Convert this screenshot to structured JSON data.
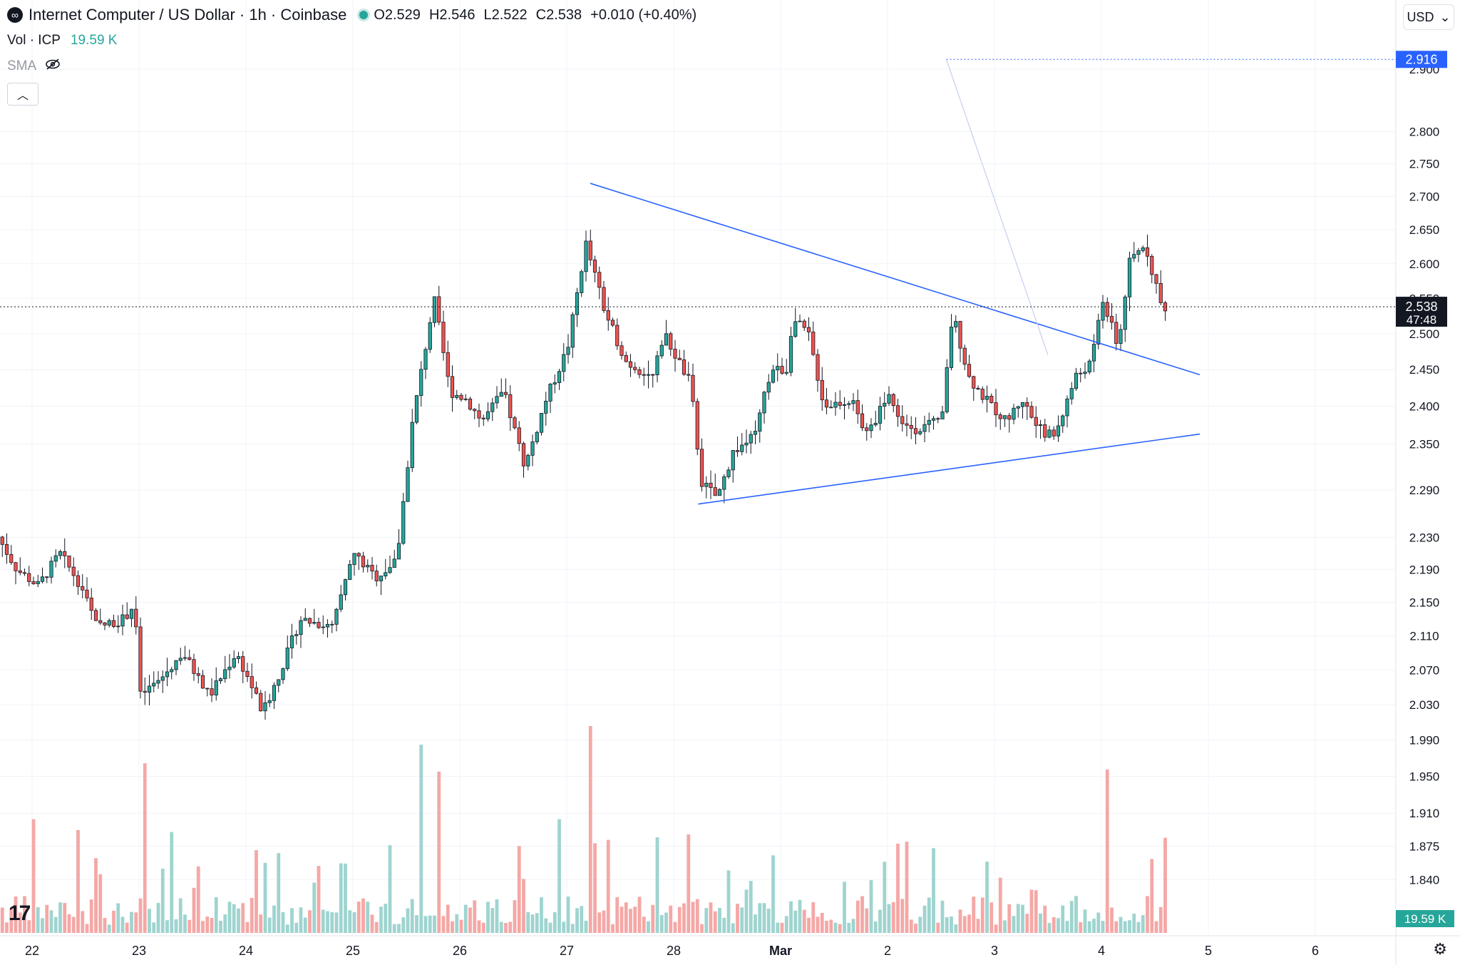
{
  "header": {
    "symbol_icon": "infinity-icon",
    "title": "Internet Computer / US Dollar · 1h · Coinbase",
    "ohlc": [
      {
        "k": "O",
        "v": "2.529"
      },
      {
        "k": "H",
        "v": "2.546"
      },
      {
        "k": "L",
        "v": "2.522"
      },
      {
        "k": "C",
        "v": "2.538"
      }
    ],
    "change": "+0.010 (+0.40%)"
  },
  "volume_legend": {
    "label": "Vol · ICP",
    "value": "19.59 K"
  },
  "sma_legend": {
    "label": "SMA",
    "icon": "eye-off-icon"
  },
  "currency": {
    "label": "USD",
    "icon": "chevron-down-icon"
  },
  "colors": {
    "up": "#26a69a",
    "down": "#ef5350",
    "up_vol": "#9fd4cf",
    "down_vol": "#f4a8a6",
    "drawing": "#2962ff",
    "grid": "#f0f3fa",
    "price_label_bg": "#131722"
  },
  "chart_data": {
    "type": "candlestick",
    "interval": "1h",
    "x_tick_labels": [
      "22",
      "23",
      "24",
      "25",
      "26",
      "27",
      "28",
      "Mar",
      "2",
      "3",
      "4",
      "5",
      "6"
    ],
    "y_tick_labels": [
      "1.840",
      "1.875",
      "1.910",
      "1.950",
      "1.990",
      "2.030",
      "2.070",
      "2.110",
      "2.150",
      "2.190",
      "2.230",
      "2.290",
      "2.350",
      "2.400",
      "2.450",
      "2.500",
      "2.550",
      "2.600",
      "2.650",
      "2.700",
      "2.750",
      "2.800",
      "2.900"
    ],
    "y_scale": "log",
    "ylim": [
      1.83,
      2.93
    ],
    "price_anchors": [
      {
        "day": 21.68,
        "price": 2.24
      },
      {
        "day": 21.9,
        "price": 2.19
      },
      {
        "day": 22.1,
        "price": 2.17
      },
      {
        "day": 22.3,
        "price": 2.21
      },
      {
        "day": 22.5,
        "price": 2.17
      },
      {
        "day": 22.65,
        "price": 2.12
      },
      {
        "day": 22.9,
        "price": 2.13
      },
      {
        "day": 23.0,
        "price": 2.15
      },
      {
        "day": 23.05,
        "price": 2.04
      },
      {
        "day": 23.25,
        "price": 2.06
      },
      {
        "day": 23.45,
        "price": 2.09
      },
      {
        "day": 23.7,
        "price": 2.04
      },
      {
        "day": 23.95,
        "price": 2.09
      },
      {
        "day": 24.1,
        "price": 2.05
      },
      {
        "day": 24.2,
        "price": 2.02
      },
      {
        "day": 24.4,
        "price": 2.08
      },
      {
        "day": 24.55,
        "price": 2.13
      },
      {
        "day": 24.85,
        "price": 2.12
      },
      {
        "day": 25.05,
        "price": 2.21
      },
      {
        "day": 25.25,
        "price": 2.18
      },
      {
        "day": 25.45,
        "price": 2.2
      },
      {
        "day": 25.6,
        "price": 2.38
      },
      {
        "day": 25.8,
        "price": 2.55
      },
      {
        "day": 25.95,
        "price": 2.42
      },
      {
        "day": 26.1,
        "price": 2.41
      },
      {
        "day": 26.25,
        "price": 2.38
      },
      {
        "day": 26.45,
        "price": 2.42
      },
      {
        "day": 26.65,
        "price": 2.32
      },
      {
        "day": 26.85,
        "price": 2.41
      },
      {
        "day": 27.05,
        "price": 2.48
      },
      {
        "day": 27.22,
        "price": 2.63
      },
      {
        "day": 27.4,
        "price": 2.53
      },
      {
        "day": 27.6,
        "price": 2.46
      },
      {
        "day": 27.85,
        "price": 2.44
      },
      {
        "day": 27.95,
        "price": 2.5
      },
      {
        "day": 28.2,
        "price": 2.43
      },
      {
        "day": 28.3,
        "price": 2.3
      },
      {
        "day": 28.45,
        "price": 2.28
      },
      {
        "day": 28.6,
        "price": 2.34
      },
      {
        "day": 28.8,
        "price": 2.36
      },
      {
        "day": 28.95,
        "price": 2.45
      },
      {
        "day": 29.1,
        "price": 2.45
      },
      {
        "day": 29.15,
        "price": 2.52
      },
      {
        "day": 29.3,
        "price": 2.5
      },
      {
        "day": 29.45,
        "price": 2.4
      },
      {
        "day": 29.7,
        "price": 2.41
      },
      {
        "day": 29.85,
        "price": 2.36
      },
      {
        "day": 30.05,
        "price": 2.42
      },
      {
        "day": 30.15,
        "price": 2.38
      },
      {
        "day": 30.3,
        "price": 2.37
      },
      {
        "day": 30.55,
        "price": 2.38
      },
      {
        "day": 30.65,
        "price": 2.53
      },
      {
        "day": 30.8,
        "price": 2.44
      },
      {
        "day": 30.95,
        "price": 2.41
      },
      {
        "day": 31.15,
        "price": 2.38
      },
      {
        "day": 31.3,
        "price": 2.41
      },
      {
        "day": 31.45,
        "price": 2.37
      },
      {
        "day": 31.6,
        "price": 2.36
      },
      {
        "day": 31.8,
        "price": 2.44
      },
      {
        "day": 31.95,
        "price": 2.46
      },
      {
        "day": 32.05,
        "price": 2.55
      },
      {
        "day": 32.2,
        "price": 2.48
      },
      {
        "day": 32.3,
        "price": 2.6
      },
      {
        "day": 32.45,
        "price": 2.63
      },
      {
        "day": 32.6,
        "price": 2.54
      },
      {
        "day": 32.63,
        "price": 2.538
      }
    ],
    "volume_spikes": [
      {
        "day": 22.0,
        "vol": 0.55,
        "dir": "down"
      },
      {
        "day": 23.05,
        "vol": 0.82,
        "dir": "down"
      },
      {
        "day": 24.1,
        "vol": 0.4,
        "dir": "down"
      },
      {
        "day": 25.63,
        "vol": 0.91,
        "dir": "up"
      },
      {
        "day": 25.82,
        "vol": 0.78,
        "dir": "up"
      },
      {
        "day": 27.22,
        "vol": 1.0,
        "dir": "down"
      },
      {
        "day": 26.95,
        "vol": 0.55,
        "dir": "up"
      },
      {
        "day": 32.05,
        "vol": 0.79,
        "dir": "up"
      },
      {
        "day": 32.6,
        "vol": 0.46,
        "dir": "down"
      }
    ],
    "trendlines": [
      {
        "from": {
          "day": 27.22,
          "price": 2.72
        },
        "to": {
          "day": 32.92,
          "price": 2.443
        }
      },
      {
        "from": {
          "day": 28.23,
          "price": 2.272
        },
        "to": {
          "day": 32.92,
          "price": 2.363
        }
      }
    ],
    "price_lines": [
      {
        "label": "2.916",
        "price": 2.916,
        "style": "dotted",
        "from_day": 30.55
      },
      {
        "label": "2.538",
        "sublabel": "47:48",
        "price": 2.538,
        "style": "dotted"
      }
    ],
    "volume_axis_label": "19.59 K"
  }
}
